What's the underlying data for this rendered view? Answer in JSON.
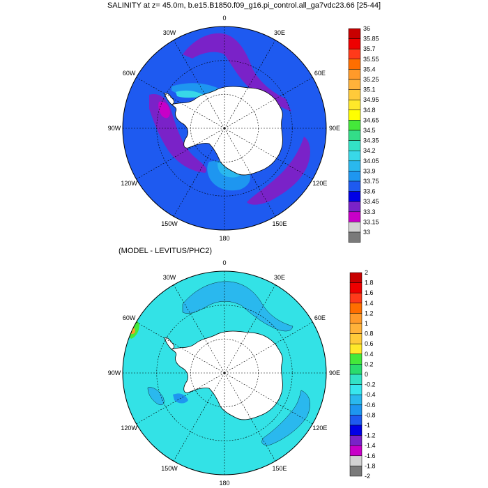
{
  "figure": {
    "title": "SALINITY at z=  45.0m, b.e15.B1850.f09_g16.pi_control.all_ga7vdc23.66 [25-44]",
    "subtitle": "(MODEL - LEVITUS/PHC2)"
  },
  "map_top": {
    "fill": "#1e5af0",
    "lon_labels": [
      {
        "lon": 0,
        "text": "0"
      },
      {
        "lon": 30,
        "text": "30E"
      },
      {
        "lon": 60,
        "text": "60E"
      },
      {
        "lon": 90,
        "text": "90E"
      },
      {
        "lon": 120,
        "text": "120E"
      },
      {
        "lon": 150,
        "text": "150E"
      },
      {
        "lon": 180,
        "text": "180"
      },
      {
        "lon": -150,
        "text": "150W"
      },
      {
        "lon": -120,
        "text": "120W"
      },
      {
        "lon": -90,
        "text": "90W"
      },
      {
        "lon": -60,
        "text": "60W"
      },
      {
        "lon": -30,
        "text": "30W"
      }
    ],
    "colorbar": {
      "labels": [
        "36",
        "35.85",
        "35.7",
        "35.55",
        "35.4",
        "35.25",
        "35.1",
        "34.95",
        "34.8",
        "34.65",
        "34.5",
        "34.35",
        "34.2",
        "34.05",
        "33.9",
        "33.75",
        "33.6",
        "33.45",
        "33.3",
        "33.15",
        "33"
      ],
      "colors": [
        "#c80000",
        "#ee0000",
        "#ff3a1a",
        "#ff6e00",
        "#ff9a2a",
        "#ffb23a",
        "#ffca3a",
        "#ffe82a",
        "#ffff00",
        "#44e83a",
        "#33dd88",
        "#33e2c6",
        "#38d8e8",
        "#2ab8ee",
        "#1e96f0",
        "#1e5af0",
        "#0000e6",
        "#7a22c8",
        "#c800c8",
        "#d2d2d2",
        "#7a7a7a"
      ]
    }
  },
  "map_bottom": {
    "fill": "#33e2e6",
    "lon_labels": [
      {
        "lon": 0,
        "text": "0"
      },
      {
        "lon": 30,
        "text": "30E"
      },
      {
        "lon": 60,
        "text": "60E"
      },
      {
        "lon": 90,
        "text": "90E"
      },
      {
        "lon": 120,
        "text": "120E"
      },
      {
        "lon": 150,
        "text": "150E"
      },
      {
        "lon": 180,
        "text": "180"
      },
      {
        "lon": -150,
        "text": "150W"
      },
      {
        "lon": -120,
        "text": "120W"
      },
      {
        "lon": -90,
        "text": "90W"
      },
      {
        "lon": -60,
        "text": "60W"
      },
      {
        "lon": -30,
        "text": "30W"
      }
    ],
    "colorbar": {
      "labels": [
        "2",
        "1.8",
        "1.6",
        "1.4",
        "1.2",
        "1",
        "0.8",
        "0.6",
        "0.4",
        "0.2",
        "0",
        "-0.2",
        "-0.4",
        "-0.6",
        "-0.8",
        "-1",
        "-1.2",
        "-1.4",
        "-1.6",
        "-1.8",
        "-2"
      ],
      "colors": [
        "#c80000",
        "#ee0000",
        "#ff3a1a",
        "#ff6e00",
        "#ff9a2a",
        "#ffb23a",
        "#ffca3a",
        "#ffe82a",
        "#44e83a",
        "#2adc6e",
        "#33e2c6",
        "#38e6ee",
        "#2ab8ee",
        "#1e96f0",
        "#1e5af0",
        "#0000e6",
        "#7a22c8",
        "#c800c8",
        "#d2d2d2",
        "#7a7a7a"
      ]
    }
  }
}
